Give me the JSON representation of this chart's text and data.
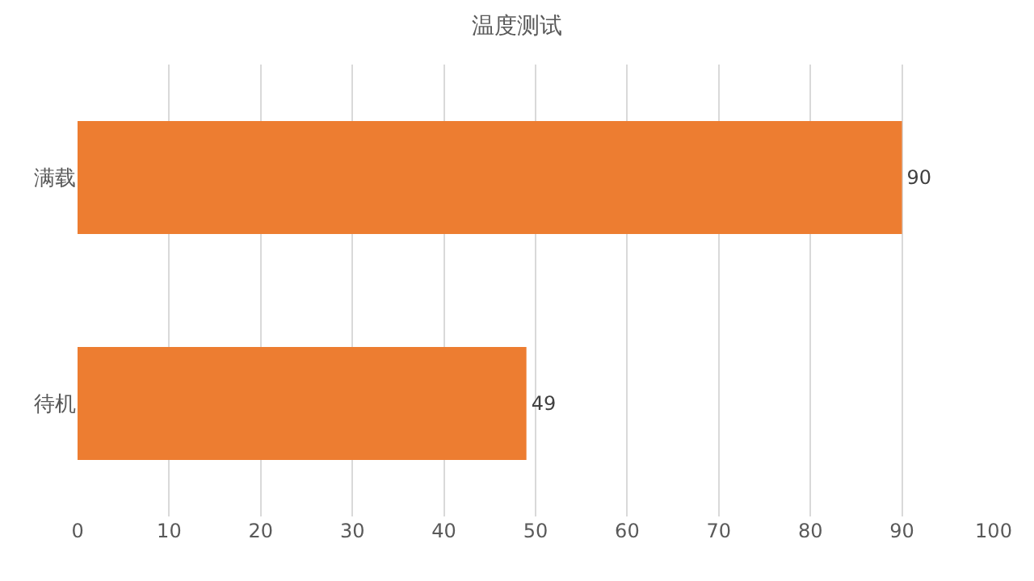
{
  "chart_data": {
    "type": "bar",
    "orientation": "horizontal",
    "title": "温度测试",
    "categories": [
      "满载",
      "待机"
    ],
    "values": [
      90,
      49
    ],
    "color": "#ed7d31",
    "xlim": [
      0,
      100
    ],
    "xticks": [
      0,
      10,
      20,
      30,
      40,
      50,
      60,
      70,
      80,
      90,
      100
    ],
    "grid": "x",
    "data_labels": true
  }
}
